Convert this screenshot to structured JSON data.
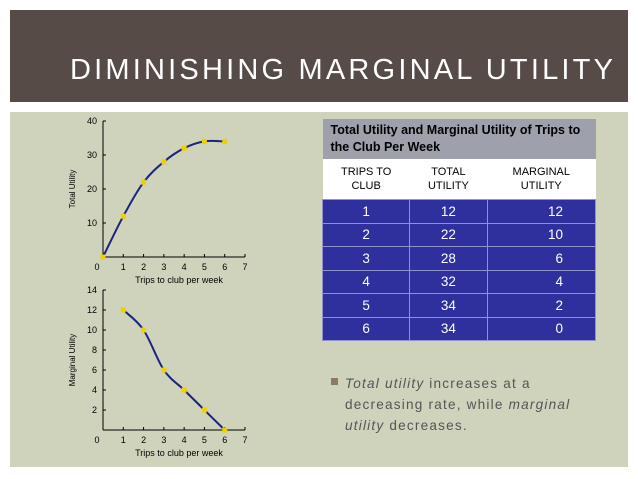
{
  "slide": {
    "title": "DIMINISHING MARGINAL UTILITY"
  },
  "colors": {
    "header_bg": "#574b47",
    "content_bg": "#cfd3bc",
    "line": "#1a237e",
    "marker": "#f0d000",
    "table_body": "#2f2f9e",
    "table_caption": "#9ea0ab"
  },
  "chart_data": [
    {
      "type": "line",
      "ylabel": "Total Utility",
      "xlabel": "Trips to club per week",
      "x": [
        0,
        1,
        2,
        3,
        4,
        5,
        6
      ],
      "series": [
        {
          "values": [
            0,
            12,
            22,
            28,
            32,
            34,
            34
          ]
        }
      ],
      "xlim": [
        0,
        7
      ],
      "ylim": [
        0,
        40
      ],
      "xticks": [
        "0",
        "1",
        "2",
        "3",
        "4",
        "5",
        "6",
        "7"
      ],
      "yticks": [
        "10",
        "20",
        "30",
        "40"
      ],
      "grid": false
    },
    {
      "type": "line",
      "ylabel": "Marginal Utility",
      "xlabel": "Trips to club per week",
      "x": [
        1,
        2,
        3,
        4,
        5,
        6
      ],
      "series": [
        {
          "values": [
            12,
            10,
            6,
            4,
            2,
            0
          ]
        }
      ],
      "xlim": [
        0,
        7
      ],
      "ylim": [
        0,
        14
      ],
      "xticks": [
        "0",
        "1",
        "2",
        "3",
        "4",
        "5",
        "6",
        "7"
      ],
      "yticks": [
        "2",
        "4",
        "6",
        "8",
        "10",
        "12",
        "14"
      ],
      "grid": false
    }
  ],
  "table": {
    "caption": "Total Utility and Marginal Utility of Trips to the Club Per Week",
    "headers": [
      [
        "TRIPS TO",
        "CLUB"
      ],
      [
        "TOTAL",
        "UTILITY"
      ],
      [
        "MARGINAL",
        "UTILITY"
      ]
    ],
    "rows": [
      [
        "1",
        "12",
        "12"
      ],
      [
        "2",
        "22",
        "10"
      ],
      [
        "3",
        "28",
        "6"
      ],
      [
        "4",
        "32",
        "4"
      ],
      [
        "5",
        "34",
        "2"
      ],
      [
        "6",
        "34",
        "0"
      ]
    ]
  },
  "bullet": {
    "em1": "Total utility",
    "text1": " increases at a decreasing rate, while ",
    "em2": "marginal utility",
    "text2": " decreases."
  }
}
